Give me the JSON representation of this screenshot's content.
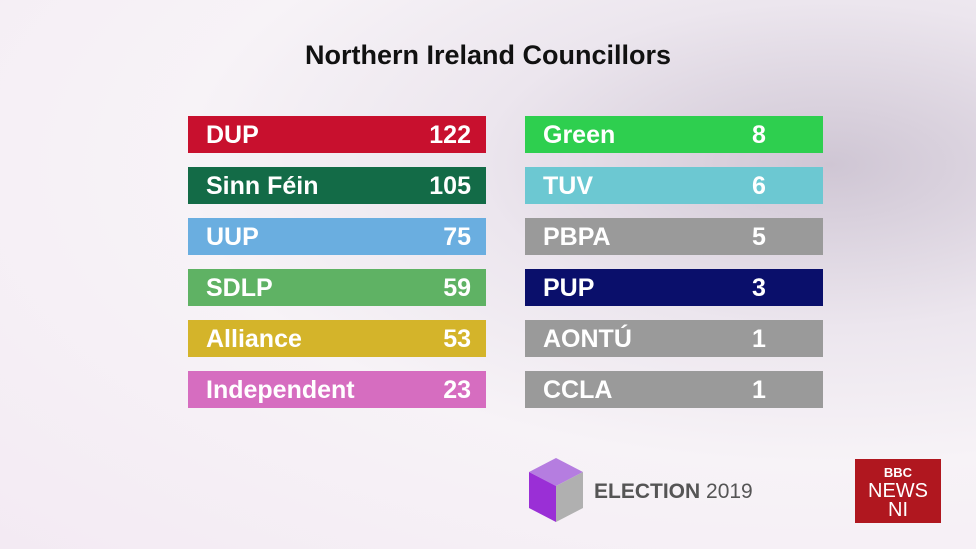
{
  "title": "Northern Ireland Councillors",
  "parties": {
    "left": [
      {
        "name": "DUP",
        "seats": 122,
        "color": "#c8102e"
      },
      {
        "name": "Sinn Féin",
        "seats": 105,
        "color": "#136b47"
      },
      {
        "name": "UUP",
        "seats": 75,
        "color": "#6aaee0"
      },
      {
        "name": "SDLP",
        "seats": 59,
        "color": "#5fb264"
      },
      {
        "name": "Alliance",
        "seats": 53,
        "color": "#d4b42a"
      },
      {
        "name": "Independent",
        "seats": 23,
        "color": "#d66dc0"
      }
    ],
    "right": [
      {
        "name": "Green",
        "seats": 8,
        "color": "#2ecf4f"
      },
      {
        "name": "TUV",
        "seats": 6,
        "color": "#6cc8d2"
      },
      {
        "name": "PBPA",
        "seats": 5,
        "color": "#9a9a9a"
      },
      {
        "name": "PUP",
        "seats": 3,
        "color": "#0a0f6b"
      },
      {
        "name": "AONTÚ",
        "seats": 1,
        "color": "#9a9a9a"
      },
      {
        "name": "CCLA",
        "seats": 1,
        "color": "#9a9a9a"
      }
    ]
  },
  "footer": {
    "election": "ELECTION",
    "year": "2019",
    "brand": [
      "BBC",
      "NEWS",
      "NI"
    ]
  }
}
